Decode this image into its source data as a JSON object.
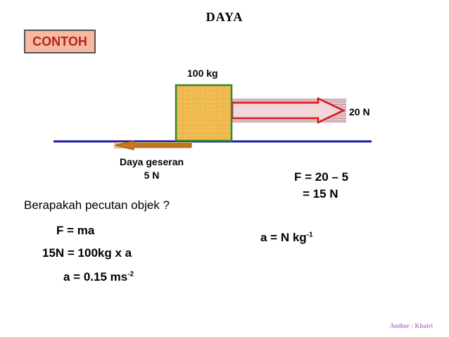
{
  "title": "DAYA",
  "badge": "CONTOH",
  "diagram": {
    "mass_label": "100 kg",
    "applied_force_label": "20 N",
    "friction_label_line1": "Daya geseran",
    "friction_label_line2": "5 N",
    "colors": {
      "ground": "#1a1aa6",
      "block_fill": "#f2c25a",
      "block_border": "#2e8b2e",
      "applied_arrow": "#d81818",
      "friction_arrow": "#c8781e"
    }
  },
  "net_force": {
    "line1": "F = 20 – 5",
    "line2": "= 15 N"
  },
  "question": "Berapakah pecutan objek ?",
  "solution": {
    "line1": "F = ma",
    "line2": "15N = 100kg x a",
    "line3_main": "a = 0.15 ms",
    "line3_sup": "-2",
    "unit_main": "a = N kg",
    "unit_sup": "-1"
  },
  "author": "Author : Khairi"
}
